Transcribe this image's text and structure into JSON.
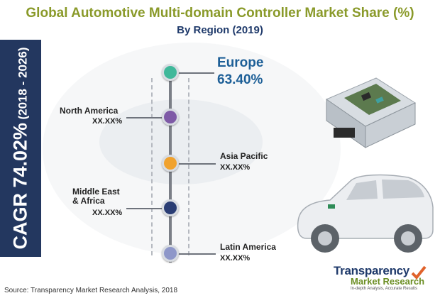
{
  "header": {
    "title": "Global Automotive Multi-domain Controller Market Share (%)",
    "subtitle": "By Region (2019)"
  },
  "cagr": {
    "label": "CAGR 74.02%",
    "period": "(2018 - 2026)"
  },
  "colors": {
    "europe": "#3fb89a",
    "north_america": "#7e5aa6",
    "asia_pacific": "#f0a22e",
    "middle_east_africa": "#2a3d74",
    "latin_america": "#8e97c9",
    "cagr_panel": "#23375f",
    "title": "#8a9a2a"
  },
  "chart_data": {
    "type": "table",
    "title": "Global Automotive Multi-domain Controller Market Share (%)",
    "subtitle": "By Region (2019)",
    "regions": [
      {
        "name": "Europe",
        "value": "63.40%"
      },
      {
        "name": "North America",
        "value": "XX.XX%"
      },
      {
        "name": "Asia Pacific",
        "value": "XX.XX%"
      },
      {
        "name": "Middle East\n& Africa",
        "value": "XX.XX%"
      },
      {
        "name": "Latin America",
        "value": "XX.XX%"
      }
    ]
  },
  "footer": {
    "source": "Source: Transparency Market Research Analysis, 2018"
  },
  "logo": {
    "name_line1": "Transparency",
    "name_line2": "Market Research",
    "tagline": "In-depth Analysis, Accurate Results"
  }
}
